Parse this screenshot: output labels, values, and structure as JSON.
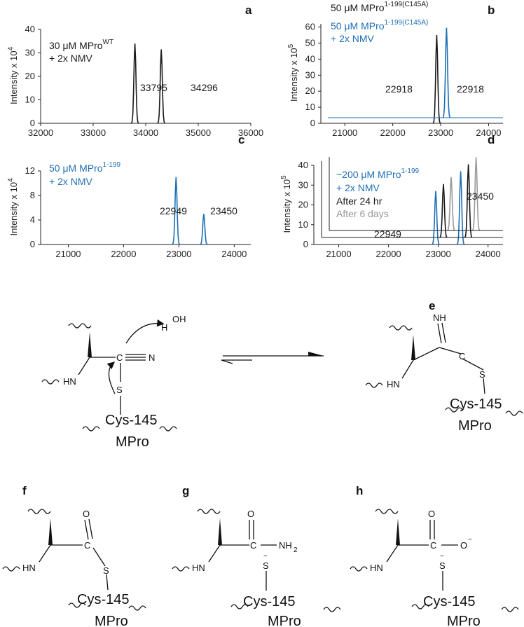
{
  "colors": {
    "black": "#1a1a1a",
    "blue": "#1e6fb5",
    "gray": "#999999"
  },
  "chart_data": [
    {
      "panel": "a",
      "type": "line",
      "ylabel": "Intensity x 10",
      "ylabel_exp": "4",
      "xlim": [
        32000,
        36000
      ],
      "ylim": [
        0,
        40
      ],
      "xticks": [
        "32000",
        "33000",
        "34000",
        "35000",
        "36000"
      ],
      "yticks": [
        "0",
        "10",
        "20",
        "30",
        "40"
      ],
      "legend": [
        {
          "text": "30 μM MPro",
          "sup": "WT",
          "color": "#1a1a1a"
        },
        {
          "text": "+ 2x NMV",
          "sup": "",
          "color": "#1a1a1a"
        }
      ],
      "series": [
        {
          "color": "#1a1a1a",
          "points": [
            [
              33795,
              34
            ],
            [
              34296,
              31.5
            ]
          ]
        }
      ],
      "peak_labels": [
        "33795",
        "34296"
      ]
    },
    {
      "panel": "b",
      "type": "line",
      "ylabel": "Intensity x 10",
      "ylabel_exp": "5",
      "xlim": [
        20500,
        24300
      ],
      "ylim": [
        0,
        62
      ],
      "xticks": [
        "21000",
        "22000",
        "23000",
        "24000"
      ],
      "yticks": [
        "0",
        "10",
        "20",
        "30",
        "40",
        "50",
        "60"
      ],
      "legend": [
        {
          "text": "50 μM MPro",
          "sup": "1-199(C145A)",
          "color": "#1a1a1a"
        },
        {
          "text": "50 μM MPro",
          "sup": "1-199(C145A)",
          "color": "#1e6fb5"
        },
        {
          "text": "+ 2x NMV",
          "sup": "",
          "color": "#1e6fb5"
        }
      ],
      "series": [
        {
          "color": "#1a1a1a",
          "points": [
            [
              22918,
              55
            ]
          ]
        },
        {
          "color": "#1e6fb5",
          "points": [
            [
              22918,
              56
            ]
          ]
        }
      ],
      "peak_labels": [
        "22918",
        "22918"
      ]
    },
    {
      "panel": "c",
      "type": "line",
      "ylabel": "Intensity x 10",
      "ylabel_exp": "4",
      "xlim": [
        20500,
        24300
      ],
      "ylim": [
        0,
        12
      ],
      "xticks": [
        "21000",
        "22000",
        "23000",
        "24000"
      ],
      "yticks": [
        "0",
        "4",
        "8",
        "12"
      ],
      "legend": [
        {
          "text": "50 μM MPro",
          "sup": "1-199",
          "color": "#1e6fb5"
        },
        {
          "text": "+ 2x NMV",
          "sup": "",
          "color": "#1e6fb5"
        }
      ],
      "series": [
        {
          "color": "#1e6fb5",
          "points": [
            [
              22949,
              11
            ],
            [
              23450,
              5
            ]
          ]
        }
      ],
      "peak_labels": [
        "22949",
        "23450"
      ]
    },
    {
      "panel": "d",
      "type": "line",
      "ylabel": "Intensity x 10",
      "ylabel_exp": "5",
      "xlim": [
        20500,
        24300
      ],
      "ylim": [
        0,
        40
      ],
      "xticks": [
        "21000",
        "22000",
        "23000",
        "24000"
      ],
      "yticks": [
        "0",
        "10",
        "20",
        "30",
        "40"
      ],
      "legend": [
        {
          "text": "~200 μM MPro",
          "sup": "1-199",
          "color": "#1e6fb5"
        },
        {
          "text": "+ 2x NMV",
          "sup": "",
          "color": "#1e6fb5"
        },
        {
          "text": "After 24 hr",
          "sup": "",
          "color": "#1a1a1a"
        },
        {
          "text": "After 6 days",
          "sup": "",
          "color": "#999999"
        }
      ],
      "series": [
        {
          "color": "#1e6fb5",
          "points": [
            [
              22949,
              27
            ],
            [
              23450,
              37
            ]
          ]
        },
        {
          "color": "#1a1a1a",
          "points": [
            [
              22949,
              27
            ],
            [
              23450,
              37
            ]
          ]
        },
        {
          "color": "#999999",
          "points": [
            [
              22949,
              27
            ],
            [
              23450,
              37
            ]
          ]
        }
      ],
      "peak_labels": [
        "22949",
        "23450"
      ]
    }
  ],
  "scheme": {
    "panel_e": "e",
    "panel_f": "f",
    "panel_g": "g",
    "panel_h": "h",
    "cys": "Cys-145",
    "mpro": "MPro",
    "HN": "HN",
    "H": "H",
    "OH": "OH",
    "C": "C",
    "N": "N",
    "S": "S",
    "NH": "NH",
    "O": "O",
    "NH2": "NH",
    "NH2_sub": "2",
    "minus": "−"
  }
}
